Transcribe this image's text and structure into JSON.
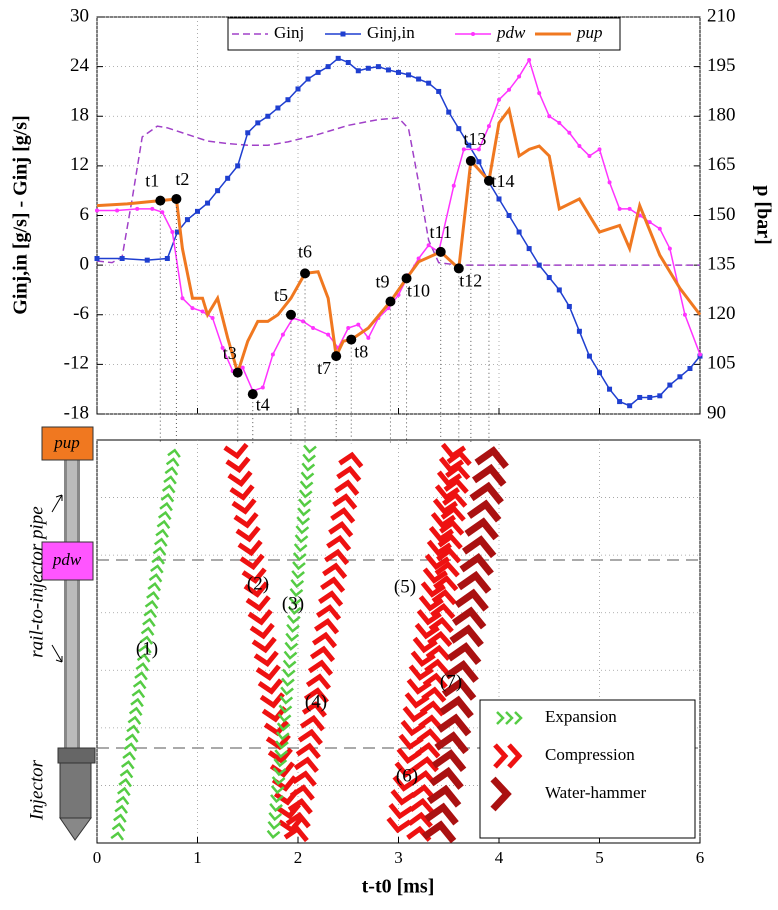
{
  "chart_data": {
    "type": "line",
    "xlabel": "t-t0 [ms]",
    "ylabel": "Ginj,in [g/s] - Ginj [g/s]",
    "y2label": "p [bar]",
    "xlim": [
      0,
      6
    ],
    "xticks": [
      0,
      1,
      2,
      3,
      4,
      5,
      6
    ],
    "ylim": [
      -18,
      30
    ],
    "yticks": [
      -18,
      -12,
      -6,
      0,
      6,
      12,
      18,
      24,
      30
    ],
    "y2lim": [
      90,
      210
    ],
    "y2ticks": [
      90,
      105,
      120,
      135,
      150,
      165,
      180,
      195,
      210
    ],
    "grid": true,
    "legend_position": "top",
    "series": [
      {
        "name": "Ginj",
        "color": "#a040c8",
        "style": "dashed",
        "x": [
          0,
          0.15,
          0.25,
          0.35,
          0.45,
          0.6,
          0.7,
          0.9,
          1.1,
          1.3,
          1.5,
          1.7,
          1.9,
          2.2,
          2.5,
          2.8,
          3.0,
          3.1,
          3.2,
          3.3,
          3.4,
          3.6,
          4.0,
          5.0,
          6.0
        ],
        "values": [
          0.5,
          0.3,
          1,
          8,
          15.5,
          16.8,
          16.6,
          15.8,
          15,
          14.7,
          14.5,
          14.5,
          14.9,
          15.8,
          16.9,
          17.6,
          17.8,
          16.5,
          10,
          3,
          0.3,
          0,
          0,
          0,
          0
        ]
      },
      {
        "name": "Ginj,in",
        "color": "#1f3fd0",
        "style": "square",
        "x": [
          0,
          0.25,
          0.5,
          0.7,
          0.8,
          0.9,
          1.0,
          1.1,
          1.2,
          1.3,
          1.4,
          1.5,
          1.6,
          1.7,
          1.8,
          1.9,
          2.0,
          2.1,
          2.2,
          2.3,
          2.4,
          2.5,
          2.6,
          2.7,
          2.8,
          2.9,
          3.0,
          3.1,
          3.2,
          3.3,
          3.4,
          3.5,
          3.6,
          3.7,
          3.8,
          3.9,
          4.0,
          4.1,
          4.2,
          4.3,
          4.4,
          4.5,
          4.6,
          4.7,
          4.8,
          4.9,
          5.0,
          5.1,
          5.2,
          5.3,
          5.4,
          5.5,
          5.6,
          5.7,
          5.8,
          5.9,
          6.0
        ],
        "values": [
          0.8,
          0.8,
          0.6,
          0.8,
          4,
          5.5,
          6.5,
          7.5,
          9,
          10.5,
          12,
          16,
          17.2,
          18,
          19,
          20,
          21.3,
          22.5,
          23.3,
          24,
          25,
          24.5,
          23.5,
          23.8,
          24,
          23.6,
          23.3,
          23,
          22.5,
          22,
          21,
          18.5,
          16.5,
          14.5,
          12.5,
          10,
          8,
          6,
          4,
          2,
          0,
          -1.5,
          -3,
          -5,
          -8,
          -11,
          -13,
          -15,
          -16.5,
          -17,
          -16,
          -16,
          -15.8,
          -14.5,
          -13.5,
          -12.5,
          -11
        ]
      },
      {
        "name": "pdw",
        "color": "#ff33ff",
        "style": "dot",
        "axis": "y2",
        "x": [
          0,
          0.2,
          0.4,
          0.55,
          0.65,
          0.75,
          0.85,
          0.95,
          1.05,
          1.15,
          1.25,
          1.35,
          1.45,
          1.55,
          1.65,
          1.75,
          1.85,
          1.95,
          2.05,
          2.15,
          2.3,
          2.4,
          2.5,
          2.6,
          2.7,
          2.8,
          2.9,
          3.0,
          3.1,
          3.2,
          3.3,
          3.4,
          3.55,
          3.65,
          3.8,
          3.9,
          4.0,
          4.1,
          4.2,
          4.3,
          4.4,
          4.5,
          4.6,
          4.7,
          4.8,
          4.9,
          5.0,
          5.1,
          5.2,
          5.3,
          5.4,
          5.5,
          5.6,
          5.7,
          5.85,
          6.0
        ],
        "values": [
          151.5,
          151.5,
          152,
          152,
          151,
          145,
          125,
          122,
          121,
          119,
          110,
          103,
          104,
          97,
          98,
          108,
          114,
          119,
          118,
          116,
          114,
          110,
          116,
          117,
          113,
          119,
          122,
          126,
          132,
          137,
          141,
          139,
          159,
          170,
          170,
          177,
          185,
          188,
          192,
          197,
          187,
          180,
          178,
          175,
          171,
          168,
          170,
          160,
          152,
          152,
          150,
          148,
          146,
          140,
          120,
          108
        ]
      },
      {
        "name": "pup",
        "color": "#f07820",
        "style": "solid",
        "axis": "y2",
        "x": [
          0,
          0.3,
          0.63,
          0.79,
          0.85,
          0.95,
          1.05,
          1.1,
          1.2,
          1.3,
          1.4,
          1.5,
          1.6,
          1.7,
          1.8,
          1.93,
          2.07,
          2.2,
          2.3,
          2.38,
          2.45,
          2.53,
          2.7,
          2.92,
          3.08,
          3.2,
          3.42,
          3.6,
          3.72,
          3.9,
          4.0,
          4.1,
          4.2,
          4.3,
          4.4,
          4.5,
          4.6,
          4.8,
          5.0,
          5.2,
          5.3,
          5.4,
          5.6,
          5.8,
          6.0
        ],
        "values": [
          153,
          153.5,
          154.5,
          155,
          140,
          125,
          125,
          120,
          125,
          113,
          102.5,
          112,
          118,
          118,
          120,
          125,
          132.5,
          133,
          125,
          107.5,
          112,
          112.5,
          116,
          124,
          131,
          136,
          139,
          134,
          166.5,
          160.5,
          178,
          182,
          168,
          170,
          171,
          168,
          152,
          155,
          145,
          147,
          140,
          153,
          138,
          128,
          120
        ]
      }
    ],
    "annotations": [
      {
        "text": "t1",
        "x": 0.63,
        "y": 154.5
      },
      {
        "text": "t2",
        "x": 0.79,
        "y": 155
      },
      {
        "text": "t3",
        "x": 1.4,
        "y": 102.5
      },
      {
        "text": "t4",
        "x": 1.55,
        "y": 96
      },
      {
        "text": "t5",
        "x": 1.93,
        "y": 120
      },
      {
        "text": "t6",
        "x": 2.07,
        "y": 132.5
      },
      {
        "text": "t7",
        "x": 2.38,
        "y": 107.5
      },
      {
        "text": "t8",
        "x": 2.53,
        "y": 112.5
      },
      {
        "text": "t9",
        "x": 2.92,
        "y": 124
      },
      {
        "text": "t10",
        "x": 3.08,
        "y": 131
      },
      {
        "text": "t11",
        "x": 3.42,
        "y": 139
      },
      {
        "text": "t12",
        "x": 3.6,
        "y": 134
      },
      {
        "text": "t13",
        "x": 3.72,
        "y": 166.5
      },
      {
        "text": "t14",
        "x": 3.9,
        "y": 160.5
      }
    ]
  },
  "diagram": {
    "pup": "pup",
    "pdw": "pdw",
    "pipe": "rail-to-injector pipe",
    "injector": "Injector",
    "legend": [
      {
        "name": "Expansion",
        "color": "#55cc44"
      },
      {
        "name": "Compression",
        "color": "#ee1111"
      },
      {
        "name": "Water-hammer",
        "color": "#aa1111"
      }
    ],
    "waves": [
      {
        "label": "(1)",
        "kind": "Expansion",
        "direction": "up",
        "t_bottom": 0.2,
        "t_top": 0.78
      },
      {
        "label": "(2)",
        "kind": "Compression",
        "direction": "down",
        "t_top": 1.38,
        "t_bottom": 1.95
      },
      {
        "label": "(3)",
        "kind": "Expansion",
        "direction": "down",
        "t_top": 2.12,
        "t_bottom": 1.75
      },
      {
        "label": "(4)",
        "kind": "Compression",
        "direction": "up",
        "t_bottom": 1.98,
        "t_top": 2.55
      },
      {
        "label": "(5)",
        "kind": "Compression",
        "direction": "down",
        "t_top": 3.55,
        "t_bottom": 2.98
      },
      {
        "label": "(6)",
        "kind": "Compression",
        "direction": "up",
        "t_bottom": 3.2,
        "t_top": 3.62
      },
      {
        "label": "(7)",
        "kind": "Water-hammer",
        "direction": "up",
        "t_bottom": 3.4,
        "t_top": 3.95
      }
    ]
  }
}
